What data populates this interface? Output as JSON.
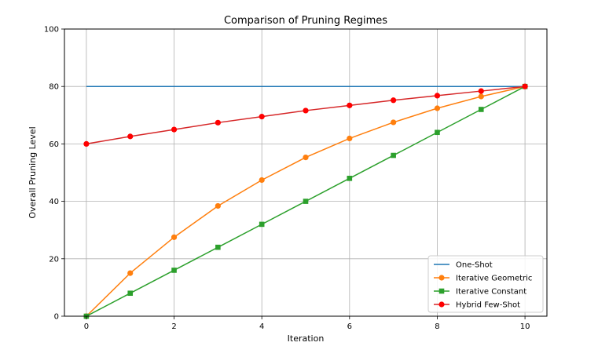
{
  "chart_data": {
    "type": "line",
    "title": "Comparison of Pruning Regimes",
    "xlabel": "Iteration",
    "ylabel": "Overall Pruning Level",
    "xlim": [
      -0.5,
      10.5
    ],
    "ylim": [
      0,
      100
    ],
    "xticks": [
      0,
      2,
      4,
      6,
      8,
      10
    ],
    "yticks": [
      0,
      20,
      40,
      60,
      80,
      100
    ],
    "grid": true,
    "legend_position": "bottom-right",
    "x": [
      0,
      1,
      2,
      3,
      4,
      5,
      6,
      7,
      8,
      9,
      10
    ],
    "series": [
      {
        "name": "One-Shot",
        "color": "#1f77b4",
        "marker": "none",
        "values": [
          80,
          80,
          80,
          80,
          80,
          80,
          80,
          80,
          80,
          80,
          80
        ]
      },
      {
        "name": "Iterative Geometric",
        "color": "#ff7f0e",
        "marker": "circle",
        "values": [
          0,
          15.0,
          27.5,
          38.4,
          47.4,
          55.3,
          61.9,
          67.5,
          72.4,
          76.5,
          80
        ]
      },
      {
        "name": "Iterative Constant",
        "color": "#2ca02c",
        "marker": "square",
        "values": [
          0,
          8,
          16,
          24,
          32,
          40,
          48,
          56,
          64,
          72,
          80
        ]
      },
      {
        "name": "Hybrid Few-Shot",
        "color": "#d62728",
        "marker_color": "#ff0000",
        "marker": "circle",
        "values": [
          60,
          62.6,
          65.0,
          67.4,
          69.5,
          71.6,
          73.4,
          75.2,
          76.8,
          78.4,
          80
        ]
      }
    ]
  }
}
